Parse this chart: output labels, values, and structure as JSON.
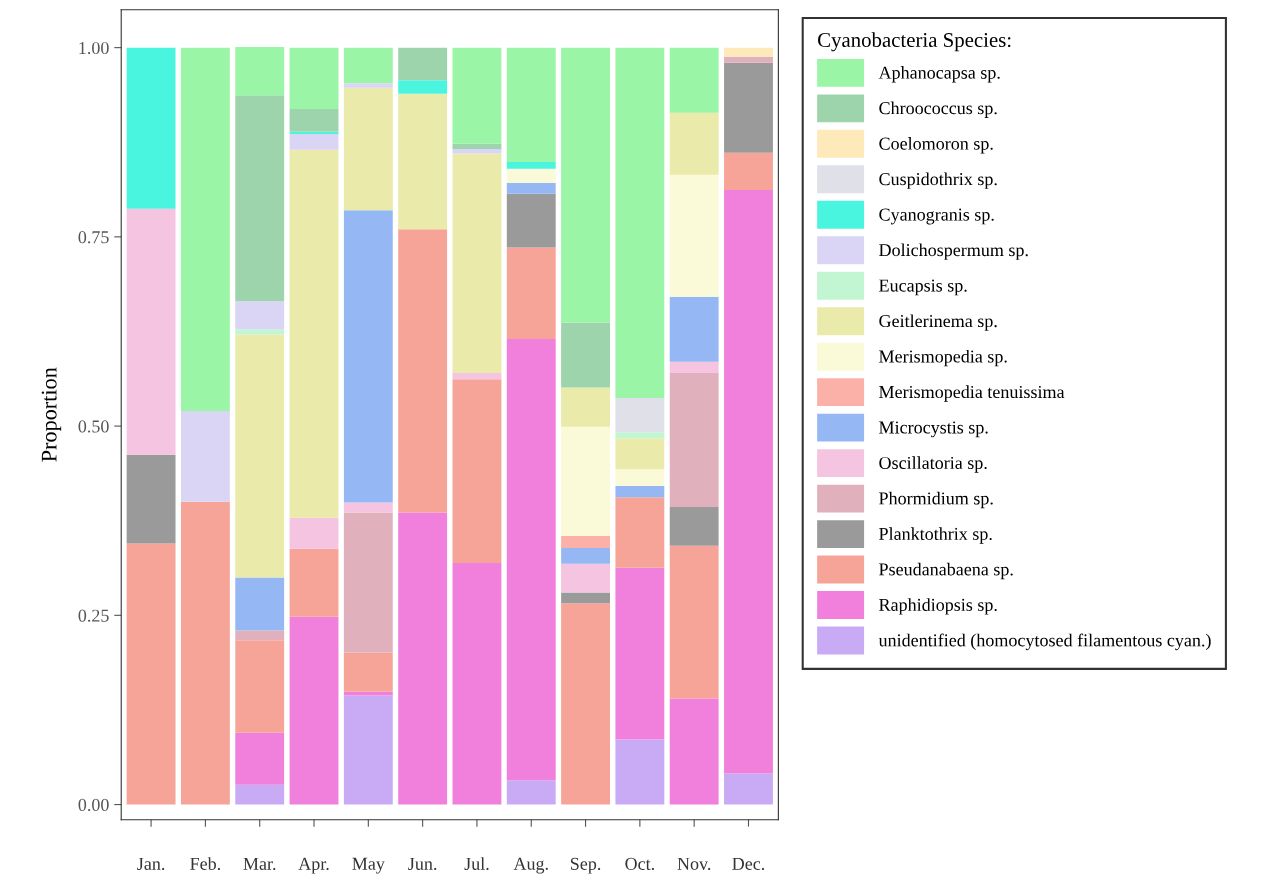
{
  "chart_data": {
    "type": "bar",
    "stacked": true,
    "ylabel": "Proportion",
    "legend_title": "Cyanobacteria Species:",
    "legend": "right",
    "grid": false,
    "categories": [
      "Jan.",
      "Feb.",
      "Mar.",
      "Apr.",
      "May",
      "Jun.",
      "Jul.",
      "Aug.",
      "Sep.",
      "Oct.",
      "Nov.",
      "Dec."
    ],
    "ylim": [
      -0.02,
      1.05
    ],
    "yticks": [
      {
        "value": 0,
        "label": "0.00"
      },
      {
        "value": 0.25,
        "label": "0.25"
      },
      {
        "value": 0.5,
        "label": "0.50"
      },
      {
        "value": 0.75,
        "label": "0.75"
      },
      {
        "value": 1,
        "label": "1.00"
      }
    ],
    "series": [
      {
        "name": "unidentified (homocytosed filamentous cyan.)",
        "color": "#c9abf5",
        "values": [
          0,
          0,
          0.026,
          0,
          0.144,
          0,
          0,
          0.032,
          0,
          0.086,
          0,
          0.041
        ]
      },
      {
        "name": "Raphidiopsis sp.",
        "color": "#f080dc",
        "values": [
          0,
          0,
          0.069,
          0.248,
          0.005,
          0.386,
          0.319,
          0.583,
          0,
          0.227,
          0.14,
          0.771
        ]
      },
      {
        "name": "Pseudanabaena sp.",
        "color": "#f6a497",
        "values": [
          0.345,
          0.4,
          0.122,
          0.09,
          0.052,
          0.374,
          0.243,
          0.121,
          0.266,
          0.093,
          0.202,
          0.049
        ]
      },
      {
        "name": "Planktothrix sp.",
        "color": "#9a9a9a",
        "values": [
          0.117,
          0,
          0,
          0,
          0,
          0,
          0,
          0.071,
          0.014,
          0,
          0.051,
          0.119
        ]
      },
      {
        "name": "Phormidium sp.",
        "color": "#e0b0bc",
        "values": [
          0,
          0,
          0.013,
          0,
          0.185,
          0,
          0,
          0,
          0,
          0,
          0.177,
          0.008
        ]
      },
      {
        "name": "Oscillatoria sp.",
        "color": "#f5c4e0",
        "values": [
          0.325,
          0,
          0,
          0.041,
          0.013,
          0,
          0.008,
          0,
          0.038,
          0,
          0.015,
          0
        ]
      },
      {
        "name": "Microcystis sp.",
        "color": "#95b8f5",
        "values": [
          0,
          0,
          0.07,
          0,
          0.386,
          0,
          0,
          0.014,
          0.021,
          0.015,
          0.086,
          0
        ]
      },
      {
        "name": "Merismopedia tenuissima",
        "color": "#fbb0a8",
        "values": [
          0,
          0,
          0,
          0,
          0,
          0,
          0,
          0,
          0.016,
          0,
          0,
          0
        ]
      },
      {
        "name": "Merismopedia sp.",
        "color": "#fafad8",
        "values": [
          0,
          0,
          0,
          0,
          0,
          0,
          0,
          0.019,
          0.144,
          0.022,
          0.161,
          0
        ]
      },
      {
        "name": "Geitlerinema sp.",
        "color": "#eaeaaa",
        "values": [
          0,
          0,
          0.321,
          0.486,
          0.162,
          0.179,
          0.29,
          0,
          0.052,
          0.041,
          0.082,
          0
        ]
      },
      {
        "name": "Eucapsis sp.",
        "color": "#c2f5d2",
        "values": [
          0,
          0,
          0.007,
          0,
          0,
          0,
          0,
          0,
          0,
          0.008,
          0,
          0
        ]
      },
      {
        "name": "Dolichospermum sp.",
        "color": "#dad4f5",
        "values": [
          0,
          0.12,
          0.037,
          0.021,
          0.006,
          0,
          0.006,
          0,
          0,
          0,
          0,
          0
        ]
      },
      {
        "name": "Cyanogranis sp.",
        "color": "#4af5e0",
        "values": [
          0.213,
          0,
          0,
          0.003,
          0,
          0.018,
          0,
          0.009,
          0,
          0,
          0,
          0
        ]
      },
      {
        "name": "Cuspidothrix sp.",
        "color": "#e0e0e8",
        "values": [
          0,
          0,
          0,
          0,
          0,
          0,
          0,
          0,
          0,
          0.045,
          0,
          0
        ]
      },
      {
        "name": "Coelomoron sp.",
        "color": "#fde9b9",
        "values": [
          0,
          0,
          0,
          0,
          0,
          0,
          0,
          0,
          0,
          0,
          0,
          0.012
        ]
      },
      {
        "name": "Chroococcus sp.",
        "color": "#9dd4ac",
        "values": [
          0,
          0,
          0.272,
          0.03,
          0,
          0.043,
          0.007,
          0,
          0.086,
          0,
          0,
          0
        ]
      },
      {
        "name": "Aphanocapsa sp.",
        "color": "#9af5a6",
        "values": [
          0,
          0.48,
          0.064,
          0.081,
          0.047,
          0,
          0.127,
          0.151,
          0.363,
          0.463,
          0.086,
          0
        ]
      }
    ]
  }
}
